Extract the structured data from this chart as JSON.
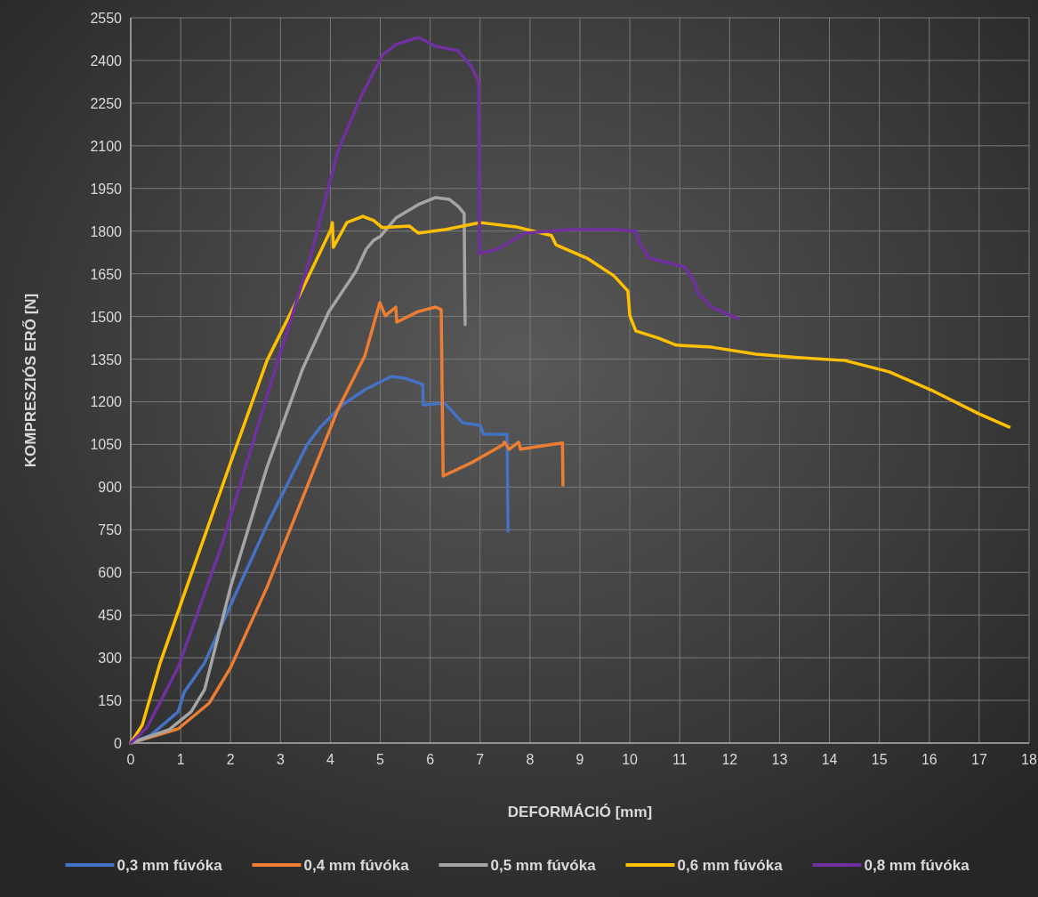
{
  "chart_data": {
    "type": "line",
    "xlabel": "DEFORMÁCIÓ [mm]",
    "ylabel": "KOMPRESZIÓS ERŐ [N]",
    "xlim": [
      0,
      18
    ],
    "xticks": [
      0,
      1,
      2,
      3,
      4,
      5,
      6,
      7,
      8,
      9,
      10,
      11,
      12,
      13,
      14,
      15,
      16,
      17,
      18
    ],
    "ylim": [
      0,
      2550
    ],
    "yticks": [
      0,
      150,
      300,
      450,
      600,
      750,
      900,
      1050,
      1200,
      1350,
      1500,
      1650,
      1800,
      1950,
      2100,
      2250,
      2400,
      2550
    ],
    "grid": true,
    "legend": "bottom",
    "marker": "none",
    "line_style": "solid",
    "series": [
      {
        "name": "0,3 mm fúvóka",
        "color": "#4472c4",
        "x": [
          0,
          0.4,
          0.95,
          1.07,
          1.48,
          2.0,
          2.73,
          3.53,
          3.8,
          4.24,
          4.69,
          5.22,
          5.49,
          5.85,
          5.86,
          6.29,
          6.65,
          7.0,
          7.07,
          7.54,
          7.56
        ],
        "values": [
          0,
          28,
          110,
          178,
          282,
          485,
          767,
          1048,
          1111,
          1189,
          1242,
          1289,
          1283,
          1261,
          1189,
          1195,
          1126,
          1117,
          1086,
          1086,
          745
        ]
      },
      {
        "name": "0,4 mm fúvóka",
        "color": "#ed7d31",
        "x": [
          0,
          0.95,
          1.57,
          2.0,
          2.73,
          3.44,
          4.15,
          4.69,
          4.99,
          5.1,
          5.31,
          5.33,
          5.76,
          6.11,
          6.22,
          6.26,
          6.83,
          7.45,
          7.49,
          7.58,
          7.77,
          7.81,
          8.65,
          8.66
        ],
        "values": [
          0,
          50,
          140,
          265,
          548,
          860,
          1173,
          1361,
          1549,
          1502,
          1533,
          1480,
          1517,
          1533,
          1524,
          939,
          986,
          1048,
          1058,
          1033,
          1058,
          1033,
          1055,
          907
        ]
      },
      {
        "name": "0,5 mm fúvóka",
        "color": "#a5a5a5",
        "x": [
          0,
          0.77,
          1.21,
          1.48,
          2.0,
          2.73,
          3.44,
          3.97,
          4.51,
          4.72,
          4.87,
          5.01,
          5.31,
          5.76,
          6.11,
          6.38,
          6.56,
          6.68,
          6.7
        ],
        "values": [
          0,
          47,
          110,
          188,
          548,
          970,
          1314,
          1517,
          1658,
          1737,
          1768,
          1783,
          1846,
          1893,
          1918,
          1912,
          1887,
          1862,
          1471
        ]
      },
      {
        "name": "0,6 mm fúvóka",
        "color": "#ffc000",
        "x": [
          0,
          0.23,
          0.59,
          1.12,
          2.0,
          2.73,
          3.44,
          4.01,
          4.04,
          4.06,
          4.33,
          4.65,
          4.87,
          5.04,
          5.58,
          5.76,
          6.29,
          6.83,
          7.0,
          7.72,
          8.43,
          8.52,
          9.14,
          9.68,
          9.96,
          10.0,
          10.12,
          10.57,
          10.93,
          11.64,
          12.53,
          13.42,
          14.31,
          15.2,
          16.1,
          16.99,
          17.6
        ],
        "values": [
          0,
          63,
          282,
          548,
          986,
          1345,
          1596,
          1805,
          1830,
          1743,
          1830,
          1852,
          1837,
          1812,
          1818,
          1793,
          1805,
          1824,
          1830,
          1815,
          1784,
          1752,
          1705,
          1643,
          1590,
          1502,
          1449,
          1424,
          1399,
          1392,
          1367,
          1355,
          1345,
          1305,
          1236,
          1158,
          1111
        ]
      },
      {
        "name": "0,8 mm fúvóka",
        "color": "#7030a0",
        "x": [
          0,
          0.32,
          0.95,
          1.84,
          2.73,
          3.62,
          4.15,
          4.6,
          5.04,
          5.31,
          5.76,
          5.86,
          6.11,
          6.56,
          6.83,
          6.97,
          6.99,
          7.36,
          7.9,
          8.79,
          9.75,
          10.12,
          10.18,
          10.39,
          11.1,
          11.28,
          11.37,
          11.64,
          12.17
        ],
        "values": [
          0,
          53,
          266,
          704,
          1220,
          1721,
          2081,
          2268,
          2418,
          2456,
          2481,
          2472,
          2450,
          2434,
          2378,
          2325,
          1721,
          1737,
          1793,
          1805,
          1805,
          1799,
          1762,
          1705,
          1674,
          1627,
          1580,
          1533,
          1492
        ]
      }
    ]
  }
}
